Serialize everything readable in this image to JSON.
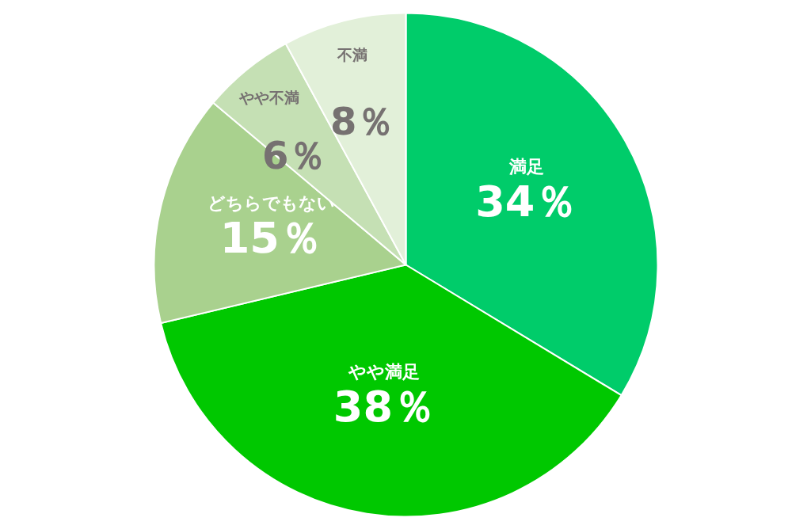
{
  "chart_data": {
    "type": "pie",
    "categories": [
      "満足",
      "やや満足",
      "どちらでもない",
      "やや不満",
      "不満"
    ],
    "values": [
      34,
      38,
      15,
      6,
      8
    ],
    "value_labels": [
      "34％",
      "38％",
      "15％",
      "6％",
      "8％"
    ],
    "colors": [
      "#00cc6a",
      "#00c800",
      "#a9d18e",
      "#c5e0b4",
      "#e2f0d9"
    ],
    "legend": false
  }
}
